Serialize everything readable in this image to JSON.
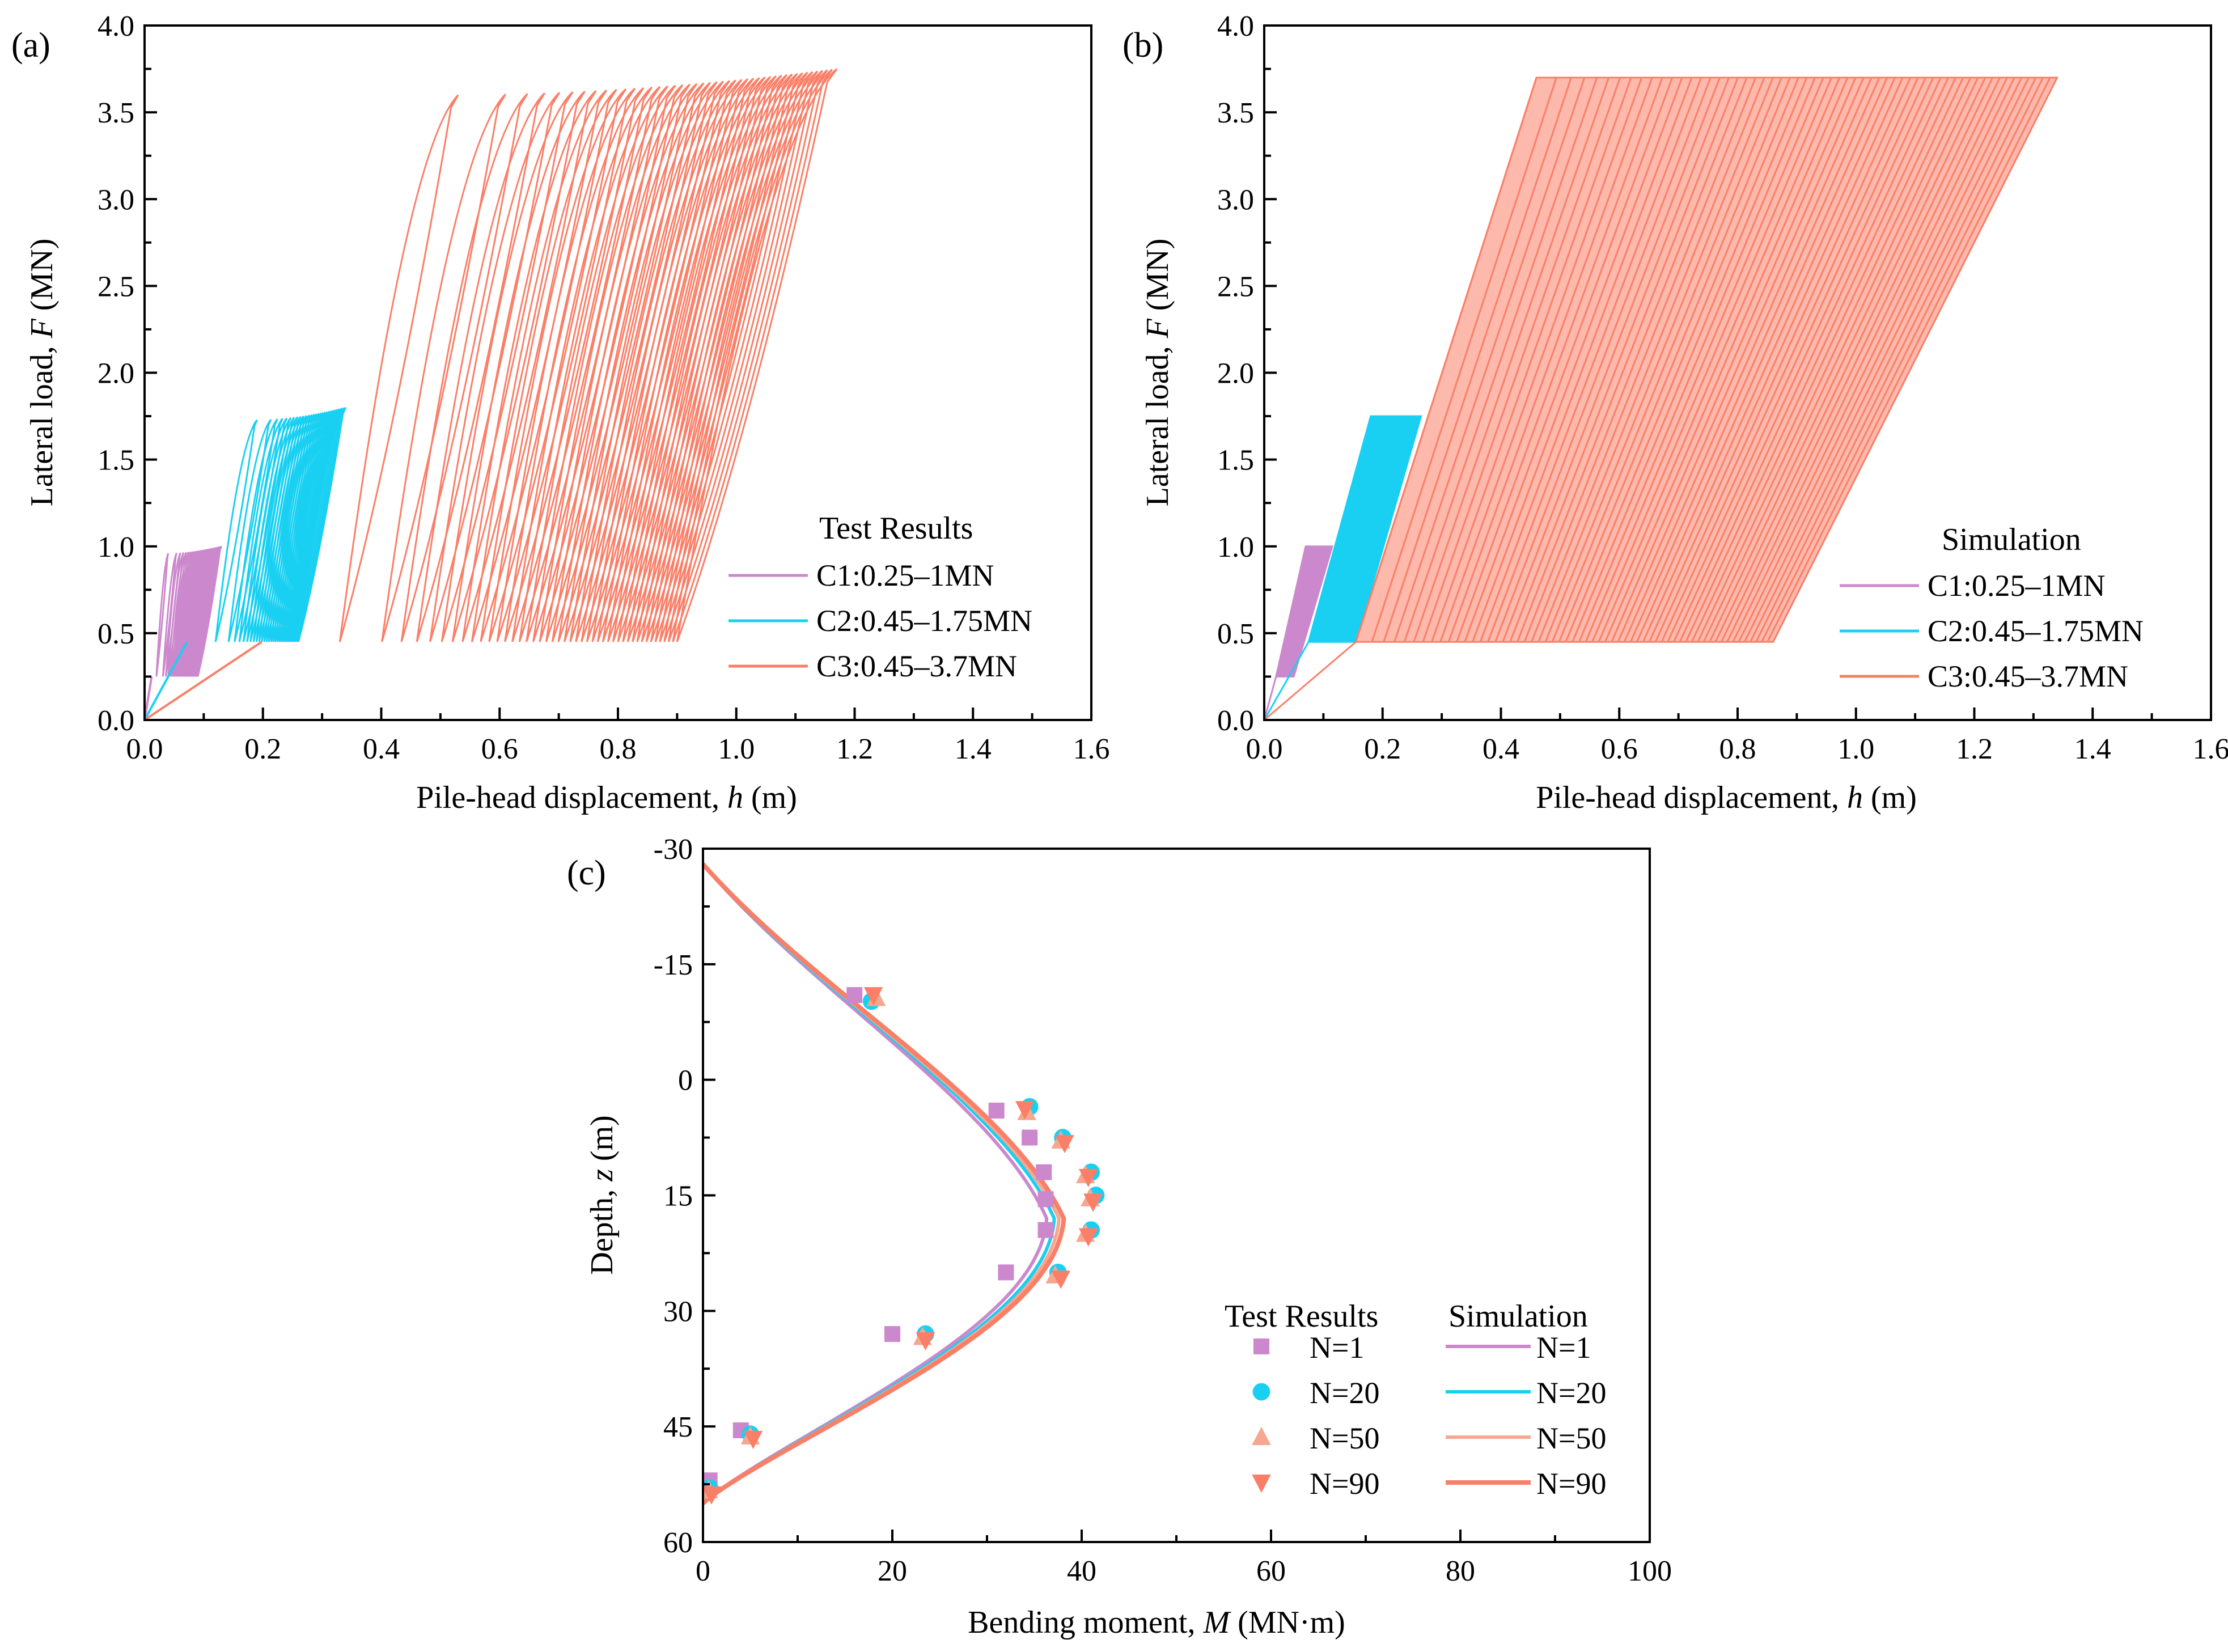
{
  "chart_data": [
    {
      "id": "a",
      "type": "line",
      "panel_label": "(a)",
      "xlabel_main": "Pile-head displacement, ",
      "xlabel_var": "h",
      "xlabel_unit": " (m)",
      "ylabel_main": "Lateral load, ",
      "ylabel_var": "F",
      "ylabel_unit": " (MN)",
      "xlim": [
        0,
        1.6
      ],
      "ylim": [
        0,
        4.0
      ],
      "xticks": [
        "0.0",
        "0.2",
        "0.4",
        "0.6",
        "0.8",
        "1.0",
        "1.2",
        "1.4",
        "1.6"
      ],
      "yticks": [
        "0.0",
        "0.5",
        "1.0",
        "1.5",
        "2.0",
        "2.5",
        "3.0",
        "3.5",
        "4.0"
      ],
      "grid": false,
      "legend_title": "Test Results",
      "legend_position": "bottom-right",
      "series": [
        {
          "name": "C1:0.25–1MN",
          "color": "#cc88cc",
          "load_min": 0.25,
          "load_max": 1.0,
          "h_start": 0.02,
          "h_end": 0.09,
          "h_peak_start": 0.04,
          "h_peak_end": 0.13,
          "cycles": 30
        },
        {
          "name": "C2:0.45–1.75MN",
          "color": "#19d0f2",
          "load_min": 0.45,
          "load_max": 1.8,
          "h_start": 0.12,
          "h_end": 0.26,
          "h_peak_start": 0.19,
          "h_peak_end": 0.34,
          "cycles": 30
        },
        {
          "name": "C3:0.45–3.7MN",
          "color": "#fa7f68",
          "load_min": 0.45,
          "load_max": 3.75,
          "h_start": 0.33,
          "h_end": 0.9,
          "h_peak_start": 0.53,
          "h_peak_end": 1.17,
          "cycles": 45
        }
      ]
    },
    {
      "id": "b",
      "type": "line",
      "panel_label": "(b)",
      "xlabel_main": "Pile-head displacement, ",
      "xlabel_var": "h",
      "xlabel_unit": " (m)",
      "ylabel_main": "Lateral load, ",
      "ylabel_var": "F",
      "ylabel_unit": " (MN)",
      "xlim": [
        0,
        1.6
      ],
      "ylim": [
        0,
        4.0
      ],
      "xticks": [
        "0.0",
        "0.2",
        "0.4",
        "0.6",
        "0.8",
        "1.0",
        "1.2",
        "1.4",
        "1.6"
      ],
      "yticks": [
        "0.0",
        "0.5",
        "1.0",
        "1.5",
        "2.0",
        "2.5",
        "3.0",
        "3.5",
        "4.0"
      ],
      "grid": false,
      "legend_title": "Simulation",
      "legend_position": "bottom-right",
      "series": [
        {
          "name": "C1:0.25–1MN",
          "color": "#cc88cc",
          "load_min": 0.25,
          "load_max": 1.0,
          "h_low_start": 0.02,
          "h_low_end": 0.05,
          "h_high_start": 0.07,
          "h_high_end": 0.115
        },
        {
          "name": "C2:0.45–1.75MN",
          "color": "#19d0f2",
          "load_min": 0.45,
          "load_max": 1.75,
          "h_low_start": 0.075,
          "h_low_end": 0.155,
          "h_high_start": 0.18,
          "h_high_end": 0.265
        },
        {
          "name": "C3:0.45–3.7MN",
          "color": "#fa7f68",
          "load_min": 0.45,
          "load_max": 3.7,
          "h_low_start": 0.155,
          "h_low_end": 0.86,
          "h_high_start": 0.46,
          "h_high_end": 1.34
        }
      ]
    },
    {
      "id": "c",
      "type": "scatter",
      "panel_label": "(c)",
      "xlabel_main": "Bending moment, ",
      "xlabel_var": "M",
      "xlabel_unit": " (MN·m)",
      "ylabel_main": "Depth, ",
      "ylabel_var": "z",
      "ylabel_unit": " (m)",
      "xlim": [
        0,
        100
      ],
      "ylim": [
        -30,
        60
      ],
      "y_inverted": true,
      "xticks": [
        "0",
        "20",
        "40",
        "60",
        "80",
        "100"
      ],
      "yticks": [
        "-30",
        "-15",
        "0",
        "15",
        "30",
        "45",
        "60"
      ],
      "grid": false,
      "legend_test_title": "Test Results",
      "legend_sim_title": "Simulation",
      "legend_position": "bottom-right",
      "test_series": [
        {
          "name": "N=1",
          "color": "#cc88cc",
          "marker": "square",
          "points": [
            [
              16,
              -11
            ],
            [
              31,
              4
            ],
            [
              34.5,
              7.5
            ],
            [
              36,
              12
            ],
            [
              36.2,
              15.5
            ],
            [
              36.2,
              19.5
            ],
            [
              32,
              25
            ],
            [
              20,
              33
            ],
            [
              4,
              45.5
            ],
            [
              0.7,
              52
            ]
          ]
        },
        {
          "name": "N=20",
          "color": "#19d0f2",
          "marker": "circle",
          "points": [
            [
              17.8,
              -10.2
            ],
            [
              34.5,
              3.5
            ],
            [
              38,
              7.5
            ],
            [
              41,
              12
            ],
            [
              41.5,
              15
            ],
            [
              41,
              19.5
            ],
            [
              37.5,
              25
            ],
            [
              23.5,
              33
            ],
            [
              5,
              46
            ],
            [
              0.7,
              53
            ]
          ]
        },
        {
          "name": "N=50",
          "color": "#f5a78f",
          "marker": "triangle-up",
          "points": [
            [
              18.3,
              -10.6
            ],
            [
              34.2,
              4.2
            ],
            [
              37.8,
              7.9
            ],
            [
              40.4,
              12.4
            ],
            [
              40.9,
              15.4
            ],
            [
              40.4,
              20
            ],
            [
              37.2,
              25.4
            ],
            [
              23.2,
              33.4
            ],
            [
              5,
              46.3
            ],
            [
              0.6,
              53.3
            ]
          ]
        },
        {
          "name": "N=90",
          "color": "#fa7f68",
          "marker": "triangle-down",
          "points": [
            [
              18,
              -11
            ],
            [
              34,
              3.8
            ],
            [
              38.2,
              8.2
            ],
            [
              40.7,
              12.6
            ],
            [
              41.2,
              15.8
            ],
            [
              40.7,
              20.3
            ],
            [
              37.8,
              25.8
            ],
            [
              23.5,
              33.8
            ],
            [
              5.3,
              46.6
            ],
            [
              0.9,
              53.8
            ]
          ]
        }
      ],
      "sim_series": [
        {
          "name": "N=1",
          "color": "#cc88cc",
          "peak": 36.3
        },
        {
          "name": "N=20",
          "color": "#19d0f2",
          "peak": 37.1
        },
        {
          "name": "N=50",
          "color": "#f5a78f",
          "peak": 37.6
        },
        {
          "name": "N=90",
          "color": "#fa7f68",
          "peak": 38.1
        }
      ]
    }
  ]
}
